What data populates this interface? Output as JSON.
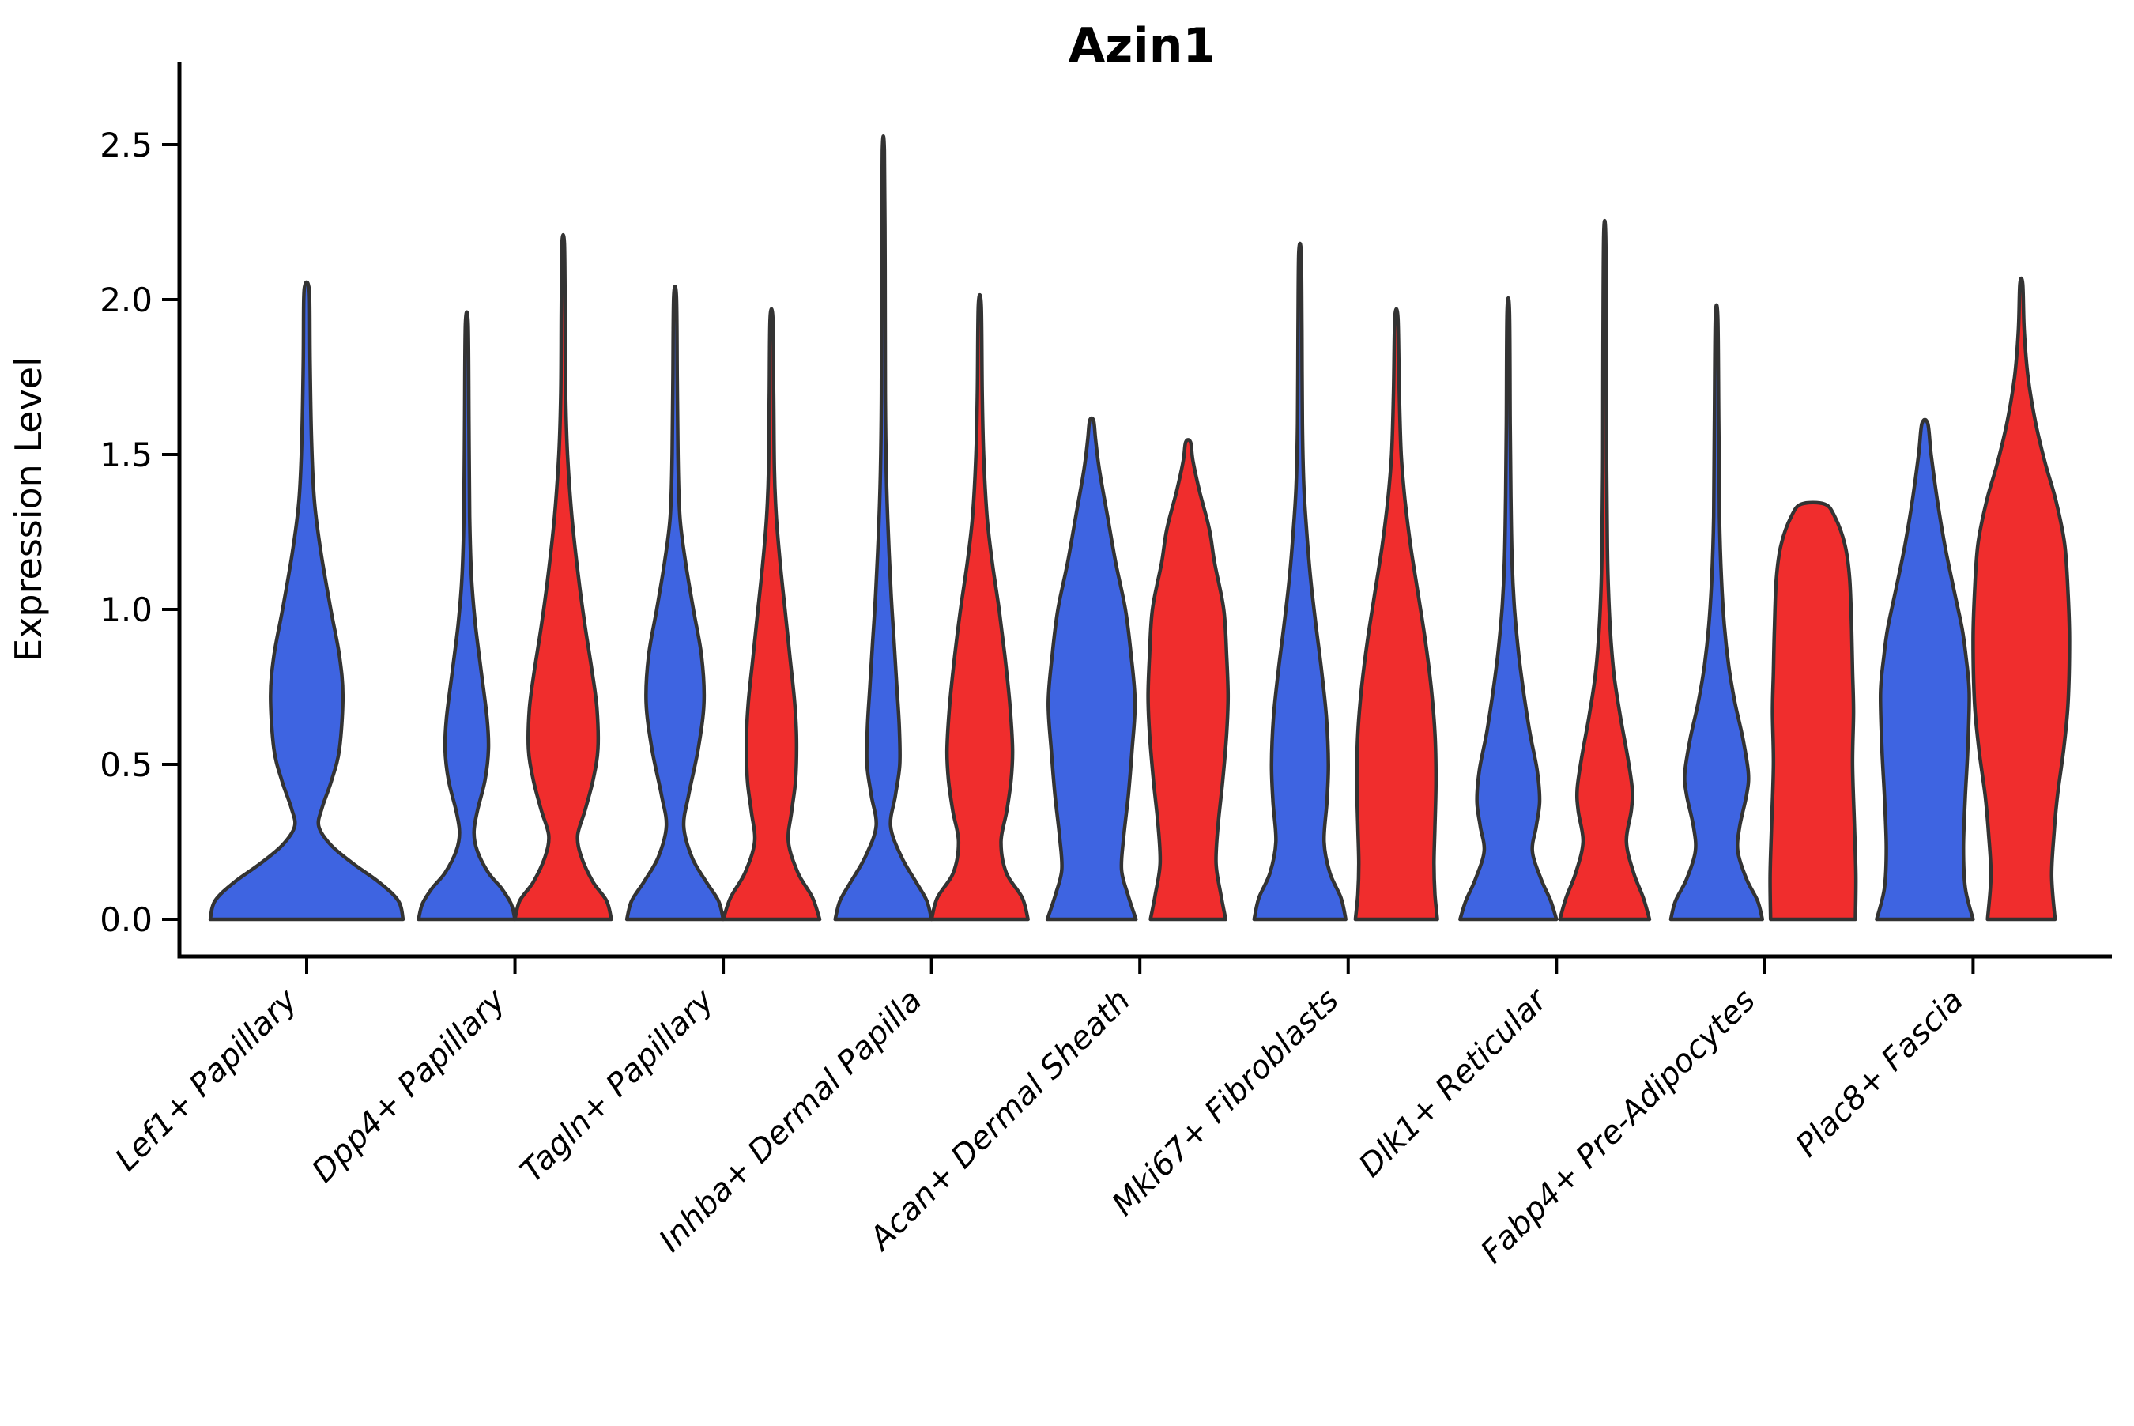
{
  "title": "Azin1",
  "y_axis": {
    "label": "Expression Level",
    "tick_labels": [
      "0.0",
      "0.5",
      "1.0",
      "1.5",
      "2.0",
      "2.5"
    ],
    "tick_values": [
      0.0,
      0.5,
      1.0,
      1.5,
      2.0,
      2.5
    ],
    "min": 0.0,
    "max": 2.5
  },
  "colors": {
    "blue": "#3E64E1",
    "red": "#F02D2D",
    "outline": "#333333",
    "axis": "#000000"
  },
  "chart_data": {
    "type": "violin",
    "title": "Azin1",
    "ylabel": "Expression Level",
    "xlabel": "",
    "ylim": [
      0,
      2.5
    ],
    "grid": false,
    "legend": "none",
    "categories": [
      "Lef1+ Papillary",
      "Dpp4+ Papillary",
      "Tagln+ Papillary",
      "Inhba+ Dermal Papilla",
      "Acan+ Dermal Sheath",
      "Mki67+ Fibroblasts",
      "Dlk1+ Reticular",
      "Fabp4+ Pre-Adipocytes",
      "Plac8+ Fascia"
    ],
    "series": [
      {
        "name": "group-blue",
        "color_key": "blue"
      },
      {
        "name": "group-red",
        "color_key": "red"
      }
    ],
    "violins": [
      {
        "category_index": 0,
        "side": "single",
        "color_key": "blue",
        "max_value": 2.05,
        "profile": [
          [
            0,
            1.0
          ],
          [
            0.06,
            0.95
          ],
          [
            0.12,
            0.75
          ],
          [
            0.18,
            0.48
          ],
          [
            0.24,
            0.25
          ],
          [
            0.3,
            0.125
          ],
          [
            0.36,
            0.16
          ],
          [
            0.45,
            0.26
          ],
          [
            0.55,
            0.34
          ],
          [
            0.72,
            0.375
          ],
          [
            0.85,
            0.34
          ],
          [
            1.0,
            0.25
          ],
          [
            1.18,
            0.15
          ],
          [
            1.35,
            0.08
          ],
          [
            1.55,
            0.05
          ],
          [
            1.8,
            0.035
          ],
          [
            2.0,
            0.03
          ],
          [
            2.05,
            0.015
          ]
        ]
      },
      {
        "category_index": 1,
        "side": "left",
        "color_key": "blue",
        "max_value": 1.92,
        "profile": [
          [
            0,
            1.0
          ],
          [
            0.05,
            0.92
          ],
          [
            0.1,
            0.72
          ],
          [
            0.15,
            0.45
          ],
          [
            0.22,
            0.22
          ],
          [
            0.28,
            0.15
          ],
          [
            0.35,
            0.22
          ],
          [
            0.45,
            0.38
          ],
          [
            0.55,
            0.45
          ],
          [
            0.65,
            0.42
          ],
          [
            0.8,
            0.3
          ],
          [
            0.95,
            0.18
          ],
          [
            1.1,
            0.1
          ],
          [
            1.3,
            0.06
          ],
          [
            1.6,
            0.045
          ],
          [
            1.92,
            0.028
          ]
        ]
      },
      {
        "category_index": 1,
        "side": "right",
        "color_key": "red",
        "max_value": 2.18,
        "profile": [
          [
            0,
            1.0
          ],
          [
            0.06,
            0.9
          ],
          [
            0.12,
            0.62
          ],
          [
            0.2,
            0.38
          ],
          [
            0.27,
            0.3
          ],
          [
            0.35,
            0.45
          ],
          [
            0.45,
            0.62
          ],
          [
            0.55,
            0.72
          ],
          [
            0.68,
            0.7
          ],
          [
            0.8,
            0.6
          ],
          [
            0.95,
            0.45
          ],
          [
            1.1,
            0.32
          ],
          [
            1.3,
            0.18
          ],
          [
            1.5,
            0.09
          ],
          [
            1.7,
            0.05
          ],
          [
            1.95,
            0.04
          ],
          [
            2.18,
            0.025
          ]
        ]
      },
      {
        "category_index": 2,
        "side": "left",
        "color_key": "blue",
        "max_value": 2.01,
        "profile": [
          [
            0,
            1.0
          ],
          [
            0.06,
            0.9
          ],
          [
            0.12,
            0.65
          ],
          [
            0.2,
            0.35
          ],
          [
            0.3,
            0.18
          ],
          [
            0.4,
            0.28
          ],
          [
            0.55,
            0.48
          ],
          [
            0.7,
            0.6
          ],
          [
            0.85,
            0.55
          ],
          [
            1.0,
            0.38
          ],
          [
            1.15,
            0.22
          ],
          [
            1.3,
            0.1
          ],
          [
            1.5,
            0.06
          ],
          [
            1.75,
            0.045
          ],
          [
            2.01,
            0.028
          ]
        ]
      },
      {
        "category_index": 2,
        "side": "right",
        "color_key": "red",
        "max_value": 1.94,
        "profile": [
          [
            0,
            1.0
          ],
          [
            0.07,
            0.85
          ],
          [
            0.15,
            0.55
          ],
          [
            0.25,
            0.35
          ],
          [
            0.35,
            0.42
          ],
          [
            0.45,
            0.5
          ],
          [
            0.58,
            0.52
          ],
          [
            0.7,
            0.48
          ],
          [
            0.85,
            0.38
          ],
          [
            1.0,
            0.28
          ],
          [
            1.15,
            0.18
          ],
          [
            1.3,
            0.1
          ],
          [
            1.45,
            0.06
          ],
          [
            1.7,
            0.045
          ],
          [
            1.94,
            0.028
          ]
        ]
      },
      {
        "category_index": 3,
        "side": "left",
        "color_key": "blue",
        "max_value": 2.48,
        "profile": [
          [
            0,
            1.0
          ],
          [
            0.06,
            0.9
          ],
          [
            0.12,
            0.68
          ],
          [
            0.2,
            0.38
          ],
          [
            0.3,
            0.15
          ],
          [
            0.4,
            0.25
          ],
          [
            0.5,
            0.34
          ],
          [
            0.62,
            0.33
          ],
          [
            0.75,
            0.28
          ],
          [
            0.9,
            0.22
          ],
          [
            1.05,
            0.16
          ],
          [
            1.25,
            0.1
          ],
          [
            1.45,
            0.06
          ],
          [
            1.7,
            0.04
          ],
          [
            2.1,
            0.035
          ],
          [
            2.48,
            0.02
          ]
        ]
      },
      {
        "category_index": 3,
        "side": "right",
        "color_key": "red",
        "max_value": 1.98,
        "profile": [
          [
            0,
            1.0
          ],
          [
            0.07,
            0.88
          ],
          [
            0.15,
            0.55
          ],
          [
            0.25,
            0.44
          ],
          [
            0.35,
            0.56
          ],
          [
            0.45,
            0.65
          ],
          [
            0.55,
            0.68
          ],
          [
            0.7,
            0.62
          ],
          [
            0.85,
            0.52
          ],
          [
            1.0,
            0.4
          ],
          [
            1.15,
            0.26
          ],
          [
            1.3,
            0.15
          ],
          [
            1.5,
            0.08
          ],
          [
            1.7,
            0.05
          ],
          [
            1.98,
            0.03
          ]
        ]
      },
      {
        "category_index": 4,
        "side": "left",
        "color_key": "blue",
        "max_value": 1.61,
        "profile": [
          [
            0,
            0.92
          ],
          [
            0.08,
            0.75
          ],
          [
            0.16,
            0.62
          ],
          [
            0.26,
            0.66
          ],
          [
            0.4,
            0.76
          ],
          [
            0.55,
            0.84
          ],
          [
            0.7,
            0.9
          ],
          [
            0.85,
            0.82
          ],
          [
            1.0,
            0.7
          ],
          [
            1.15,
            0.5
          ],
          [
            1.3,
            0.33
          ],
          [
            1.45,
            0.16
          ],
          [
            1.55,
            0.08
          ],
          [
            1.61,
            0.04
          ]
        ]
      },
      {
        "category_index": 4,
        "side": "right",
        "color_key": "red",
        "max_value": 1.54,
        "profile": [
          [
            0,
            0.78
          ],
          [
            0.08,
            0.68
          ],
          [
            0.18,
            0.58
          ],
          [
            0.3,
            0.62
          ],
          [
            0.45,
            0.72
          ],
          [
            0.6,
            0.8
          ],
          [
            0.72,
            0.83
          ],
          [
            0.85,
            0.8
          ],
          [
            1.0,
            0.74
          ],
          [
            1.15,
            0.55
          ],
          [
            1.26,
            0.44
          ],
          [
            1.38,
            0.24
          ],
          [
            1.48,
            0.1
          ],
          [
            1.54,
            0.05
          ]
        ]
      },
      {
        "category_index": 5,
        "side": "left",
        "color_key": "blue",
        "max_value": 2.15,
        "profile": [
          [
            0,
            0.95
          ],
          [
            0.07,
            0.85
          ],
          [
            0.15,
            0.62
          ],
          [
            0.25,
            0.5
          ],
          [
            0.38,
            0.56
          ],
          [
            0.5,
            0.59
          ],
          [
            0.65,
            0.55
          ],
          [
            0.8,
            0.45
          ],
          [
            0.95,
            0.33
          ],
          [
            1.1,
            0.22
          ],
          [
            1.25,
            0.14
          ],
          [
            1.4,
            0.08
          ],
          [
            1.6,
            0.05
          ],
          [
            1.9,
            0.04
          ],
          [
            2.15,
            0.025
          ]
        ]
      },
      {
        "category_index": 5,
        "side": "right",
        "color_key": "red",
        "max_value": 1.94,
        "profile": [
          [
            0,
            0.85
          ],
          [
            0.08,
            0.8
          ],
          [
            0.18,
            0.78
          ],
          [
            0.3,
            0.8
          ],
          [
            0.45,
            0.82
          ],
          [
            0.6,
            0.8
          ],
          [
            0.75,
            0.72
          ],
          [
            0.9,
            0.6
          ],
          [
            1.05,
            0.45
          ],
          [
            1.2,
            0.3
          ],
          [
            1.35,
            0.18
          ],
          [
            1.5,
            0.1
          ],
          [
            1.7,
            0.06
          ],
          [
            1.94,
            0.032
          ]
        ]
      },
      {
        "category_index": 6,
        "side": "left",
        "color_key": "blue",
        "max_value": 1.96,
        "profile": [
          [
            0,
            1.0
          ],
          [
            0.06,
            0.88
          ],
          [
            0.13,
            0.68
          ],
          [
            0.22,
            0.5
          ],
          [
            0.3,
            0.58
          ],
          [
            0.38,
            0.65
          ],
          [
            0.48,
            0.6
          ],
          [
            0.6,
            0.45
          ],
          [
            0.72,
            0.33
          ],
          [
            0.85,
            0.22
          ],
          [
            1.0,
            0.13
          ],
          [
            1.15,
            0.08
          ],
          [
            1.35,
            0.055
          ],
          [
            1.6,
            0.04
          ],
          [
            1.96,
            0.025
          ]
        ]
      },
      {
        "category_index": 6,
        "side": "right",
        "color_key": "red",
        "max_value": 2.21,
        "profile": [
          [
            0,
            0.93
          ],
          [
            0.07,
            0.8
          ],
          [
            0.15,
            0.6
          ],
          [
            0.25,
            0.45
          ],
          [
            0.35,
            0.55
          ],
          [
            0.42,
            0.57
          ],
          [
            0.52,
            0.48
          ],
          [
            0.65,
            0.33
          ],
          [
            0.78,
            0.2
          ],
          [
            0.9,
            0.13
          ],
          [
            1.05,
            0.08
          ],
          [
            1.2,
            0.055
          ],
          [
            1.5,
            0.04
          ],
          [
            1.85,
            0.035
          ],
          [
            2.21,
            0.02
          ]
        ]
      },
      {
        "category_index": 7,
        "side": "left",
        "color_key": "blue",
        "max_value": 1.94,
        "profile": [
          [
            0,
            0.95
          ],
          [
            0.06,
            0.85
          ],
          [
            0.13,
            0.62
          ],
          [
            0.22,
            0.44
          ],
          [
            0.3,
            0.48
          ],
          [
            0.4,
            0.62
          ],
          [
            0.47,
            0.66
          ],
          [
            0.58,
            0.55
          ],
          [
            0.7,
            0.38
          ],
          [
            0.82,
            0.25
          ],
          [
            0.95,
            0.16
          ],
          [
            1.1,
            0.1
          ],
          [
            1.3,
            0.06
          ],
          [
            1.6,
            0.045
          ],
          [
            1.94,
            0.025
          ]
        ]
      },
      {
        "category_index": 7,
        "side": "right",
        "color_key": "red",
        "max_value": 1.34,
        "profile": [
          [
            0,
            0.88
          ],
          [
            0.14,
            0.89
          ],
          [
            0.3,
            0.86
          ],
          [
            0.5,
            0.82
          ],
          [
            0.67,
            0.84
          ],
          [
            0.8,
            0.82
          ],
          [
            0.94,
            0.8
          ],
          [
            1.1,
            0.76
          ],
          [
            1.21,
            0.66
          ],
          [
            1.3,
            0.45
          ],
          [
            1.34,
            0.24
          ]
        ]
      },
      {
        "category_index": 8,
        "side": "left",
        "color_key": "blue",
        "max_value": 1.6,
        "profile": [
          [
            0,
            1.0
          ],
          [
            0.1,
            0.84
          ],
          [
            0.23,
            0.8
          ],
          [
            0.4,
            0.84
          ],
          [
            0.55,
            0.89
          ],
          [
            0.73,
            0.92
          ],
          [
            0.85,
            0.85
          ],
          [
            0.94,
            0.77
          ],
          [
            1.08,
            0.58
          ],
          [
            1.21,
            0.41
          ],
          [
            1.35,
            0.26
          ],
          [
            1.5,
            0.13
          ],
          [
            1.6,
            0.06
          ]
        ]
      },
      {
        "category_index": 8,
        "side": "right",
        "color_key": "red",
        "max_value": 2.05,
        "profile": [
          [
            0,
            0.7
          ],
          [
            0.14,
            0.63
          ],
          [
            0.28,
            0.68
          ],
          [
            0.4,
            0.75
          ],
          [
            0.55,
            0.88
          ],
          [
            0.7,
            0.97
          ],
          [
            0.9,
            1.0
          ],
          [
            1.05,
            0.97
          ],
          [
            1.21,
            0.9
          ],
          [
            1.35,
            0.72
          ],
          [
            1.47,
            0.5
          ],
          [
            1.6,
            0.3
          ],
          [
            1.75,
            0.14
          ],
          [
            1.9,
            0.06
          ],
          [
            2.05,
            0.03
          ]
        ]
      }
    ]
  }
}
